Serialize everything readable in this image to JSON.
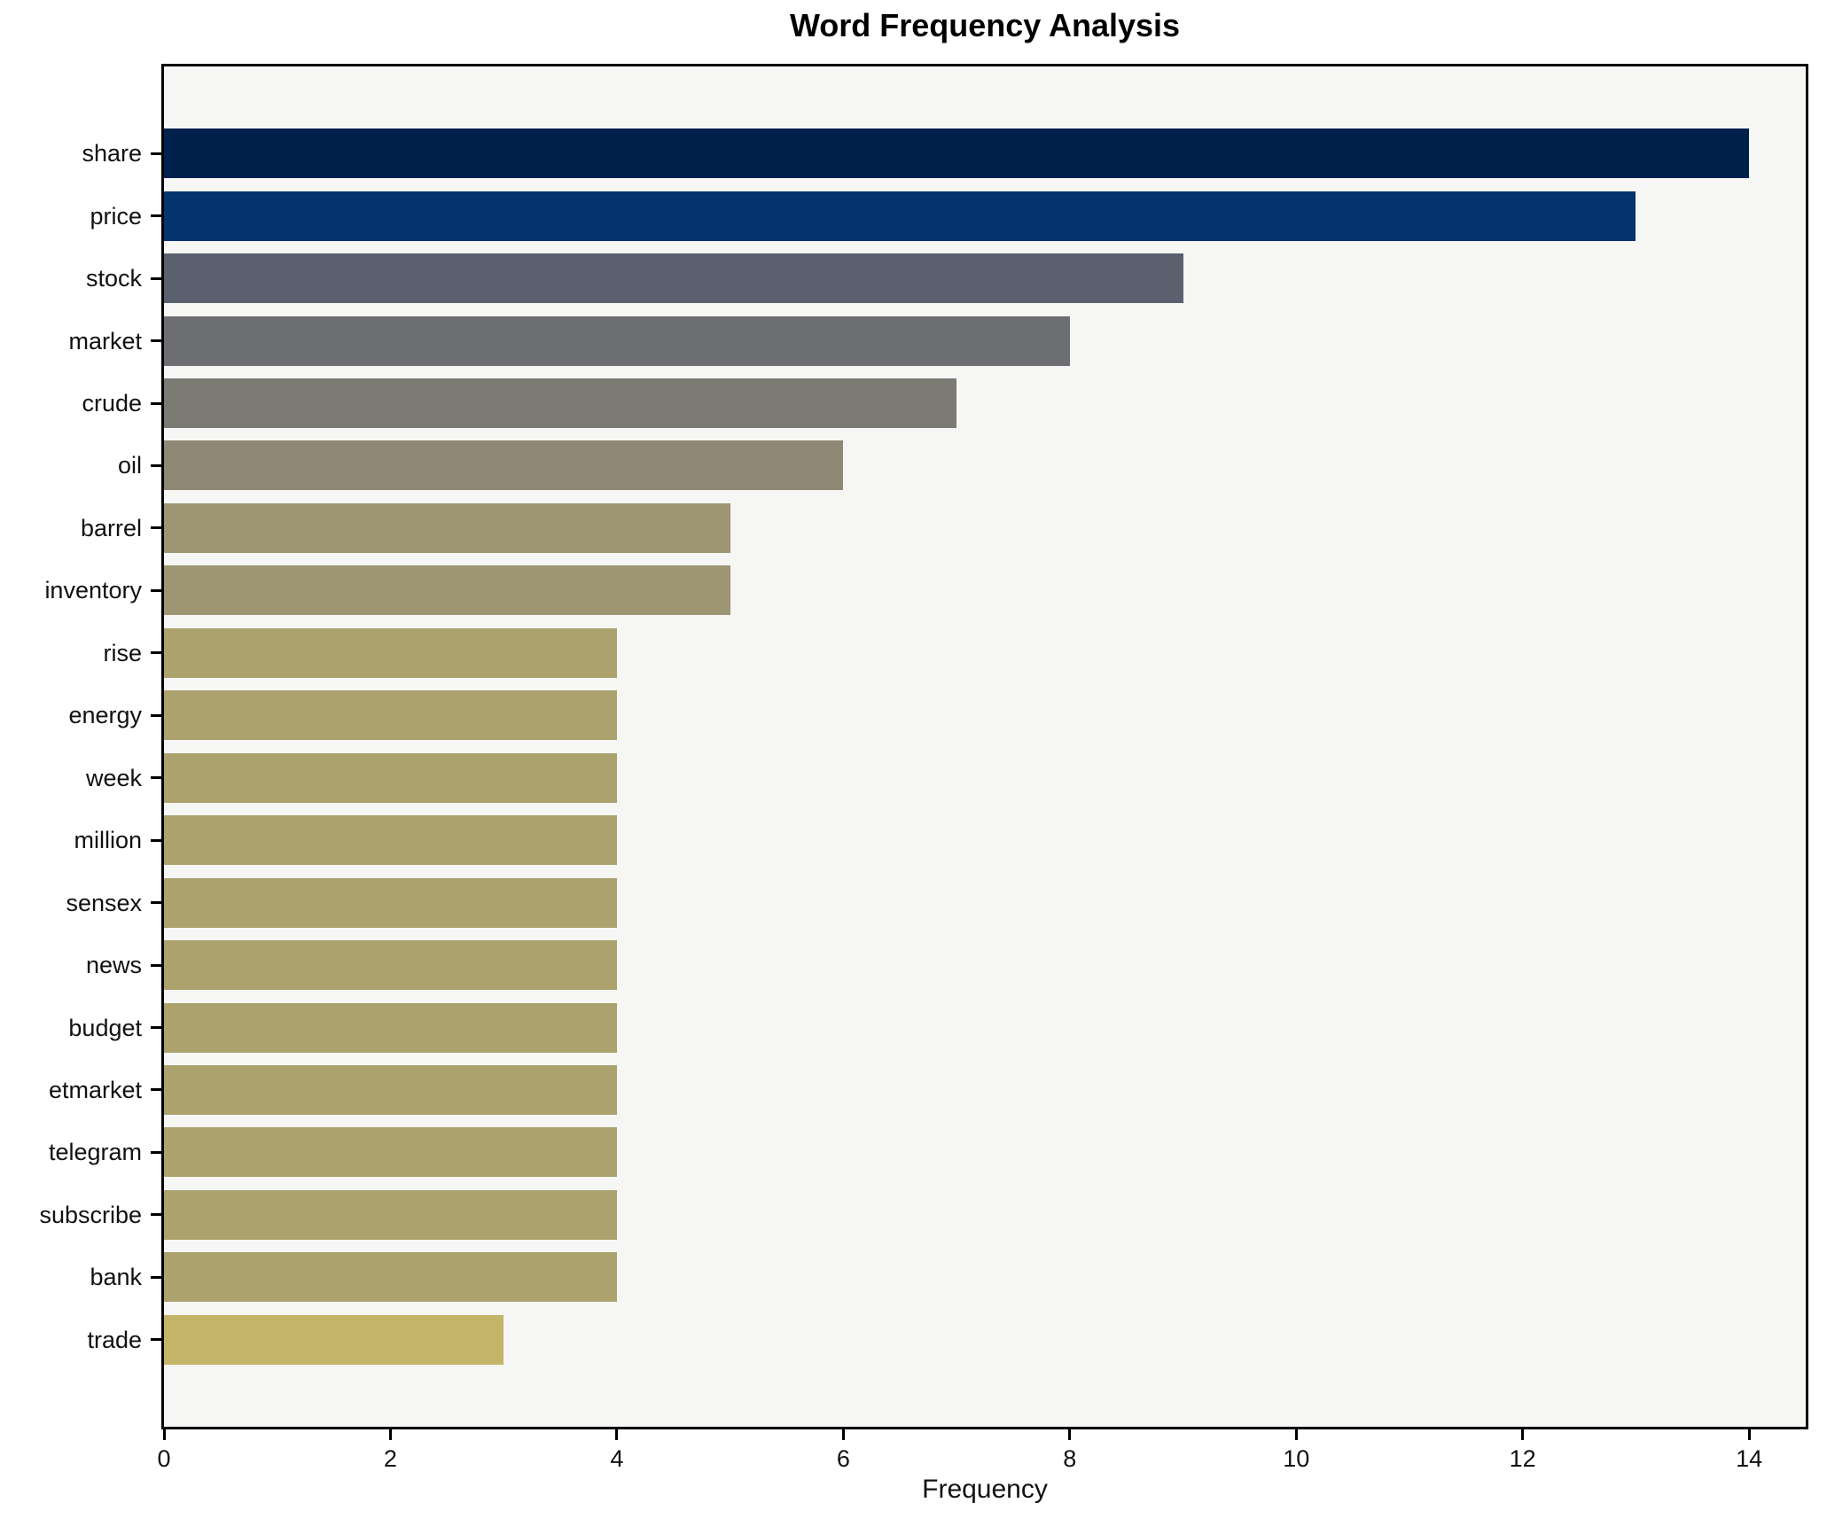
{
  "chart_data": {
    "type": "bar",
    "orientation": "horizontal",
    "title": "Word Frequency Analysis",
    "xlabel": "Frequency",
    "ylabel": "",
    "categories": [
      "share",
      "price",
      "stock",
      "market",
      "crude",
      "oil",
      "barrel",
      "inventory",
      "rise",
      "energy",
      "week",
      "million",
      "sensex",
      "news",
      "budget",
      "etmarket",
      "telegram",
      "subscribe",
      "bank",
      "trade"
    ],
    "values": [
      14,
      13,
      9,
      8,
      7,
      6,
      5,
      5,
      4,
      4,
      4,
      4,
      4,
      4,
      4,
      4,
      4,
      4,
      4,
      3
    ],
    "bar_colors": [
      "#01214d",
      "#04336e",
      "#5b606e",
      "#6c6e72",
      "#7b7a73",
      "#8e8875",
      "#9e9672",
      "#9e9672",
      "#aca26e",
      "#aca26e",
      "#aca26e",
      "#aca26e",
      "#aca26e",
      "#aca26e",
      "#aca26e",
      "#aca26e",
      "#aca26e",
      "#aca26e",
      "#aca26e",
      "#c3b467"
    ],
    "xlim": [
      0,
      14.5
    ],
    "xticks": [
      0,
      2,
      4,
      6,
      8,
      10,
      12,
      14
    ],
    "grid": false,
    "legend": false,
    "plot_bg": "#f6f6f5",
    "figure_bg": "#ffffff",
    "spine_color": "#000000",
    "text_color": "#111111"
  }
}
